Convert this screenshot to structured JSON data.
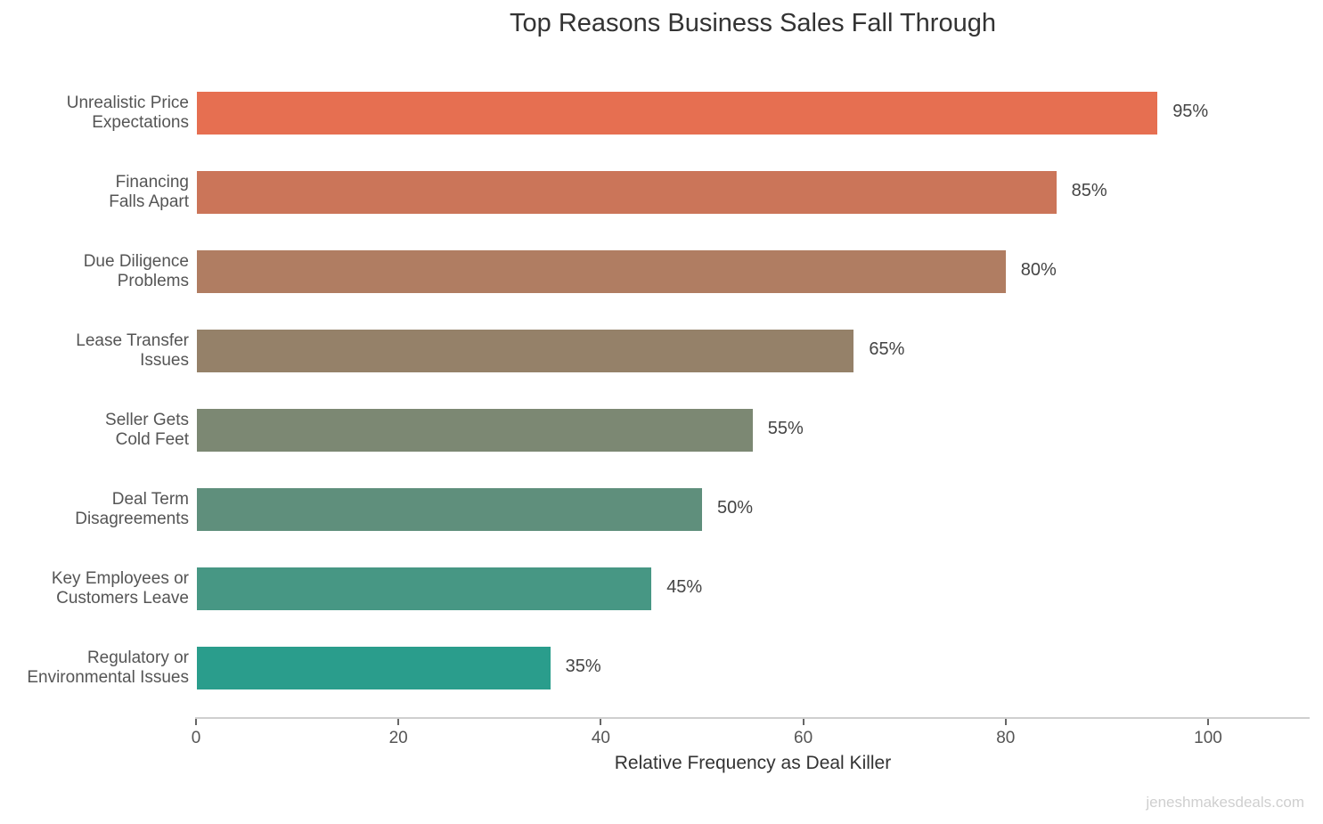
{
  "chart_data": {
    "type": "bar",
    "orientation": "horizontal",
    "title": "Top Reasons Business Sales Fall Through",
    "xlabel": "Relative Frequency as Deal Killer",
    "ylabel": "",
    "xlim": [
      0,
      110
    ],
    "xticks": [
      0,
      20,
      40,
      60,
      80,
      100
    ],
    "grid": false,
    "legend": null,
    "categories": [
      "Unrealistic Price\nExpectations",
      "Financing\nFalls Apart",
      "Due Diligence\nProblems",
      "Lease Transfer\nIssues",
      "Seller Gets\nCold Feet",
      "Deal Term\nDisagreements",
      "Key Employees or\nCustomers Leave",
      "Regulatory or\nEnvironmental Issues"
    ],
    "values": [
      95,
      85,
      80,
      65,
      55,
      50,
      45,
      35
    ],
    "value_labels": [
      "95%",
      "85%",
      "80%",
      "65%",
      "55%",
      "50%",
      "45%",
      "35%"
    ],
    "colors": [
      "#E66F51",
      "#CB7559",
      "#B07D62",
      "#958169",
      "#7C8873",
      "#5F8F7C",
      "#479784",
      "#2A9D8C"
    ],
    "watermark": "jeneshmakesdeals.com"
  },
  "ticks": [
    "0",
    "20",
    "40",
    "60",
    "80",
    "100"
  ]
}
